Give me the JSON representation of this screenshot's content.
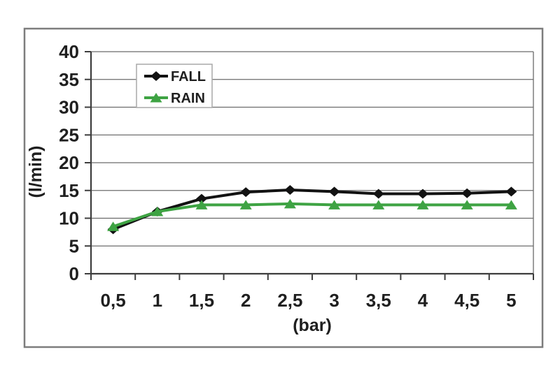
{
  "chart_data": {
    "type": "line",
    "title": "",
    "xlabel": "(bar)",
    "ylabel": "(l/min)",
    "x": [
      0.5,
      1,
      1.5,
      2,
      2.5,
      3,
      3.5,
      4,
      4.5,
      5
    ],
    "x_tick_labels": [
      "0,5",
      "1",
      "1,5",
      "2",
      "2,5",
      "3",
      "3,5",
      "4",
      "4,5",
      "5"
    ],
    "y_ticks": [
      0,
      5,
      10,
      15,
      20,
      25,
      30,
      35,
      40
    ],
    "ylim": [
      0,
      40
    ],
    "grid": true,
    "legend_position": "inside-top-left",
    "series": [
      {
        "name": "FALL",
        "color": "#121212",
        "marker": "diamond",
        "values": [
          8.0,
          11.2,
          13.5,
          14.7,
          15.1,
          14.8,
          14.4,
          14.4,
          14.5,
          14.8
        ]
      },
      {
        "name": "RAIN",
        "color": "#3ea343",
        "marker": "triangle",
        "values": [
          8.5,
          11.2,
          12.4,
          12.4,
          12.6,
          12.4,
          12.4,
          12.4,
          12.4,
          12.4
        ]
      }
    ]
  }
}
